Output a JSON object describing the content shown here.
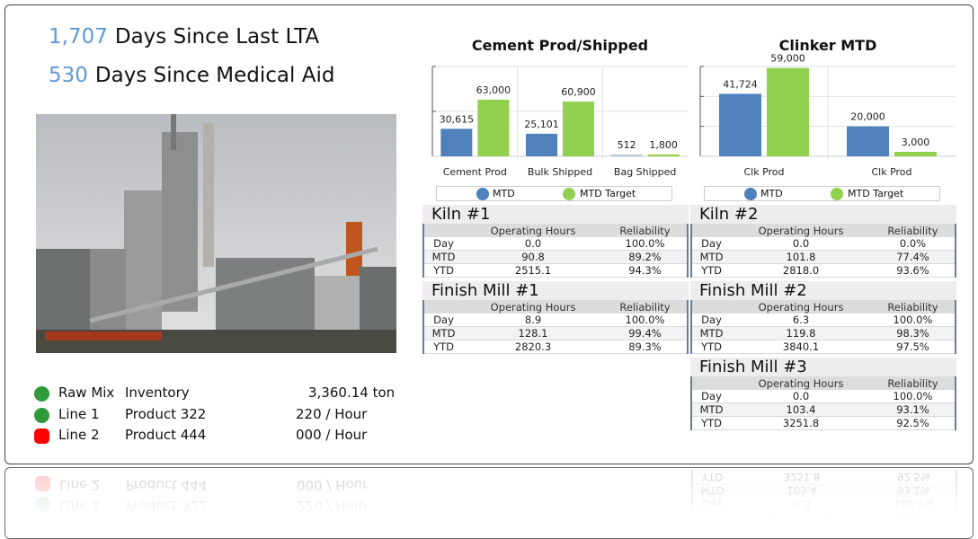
{
  "counters": [
    {
      "value": "1,707",
      "label": "Days Since Last LTA"
    },
    {
      "value": "530",
      "label": "Days Since Medical Aid"
    }
  ],
  "status": [
    {
      "name": "Raw Mix",
      "item": "Inventory",
      "value": "3,360.14 ton",
      "color": "#2e9a3a",
      "state": "running"
    },
    {
      "name": "Line 1",
      "item": "Product 322",
      "value": "220 / Hour",
      "color": "#2e9a3a",
      "state": "running"
    },
    {
      "name": "Line 2",
      "item": "Product 444",
      "value": "000 / Hour",
      "color": "#ff0000",
      "state": "stopped"
    }
  ],
  "chart_data": [
    {
      "type": "bar",
      "title": "Cement Prod/Shipped",
      "categories": [
        "Cement Prod",
        "Bulk Shipped",
        "Bag Shipped"
      ],
      "series": [
        {
          "name": "MTD",
          "color": "#4f81bd",
          "values": [
            30615,
            25101,
            512
          ]
        },
        {
          "name": "MTD Target",
          "color": "#92d050",
          "values": [
            63000,
            60900,
            1800
          ]
        }
      ],
      "labels": [
        [
          "30,615",
          "25,101",
          "512"
        ],
        [
          "63,000",
          "60,900",
          "1,800"
        ]
      ],
      "ylim": [
        0,
        100000
      ],
      "grid": true,
      "legend": "bottom"
    },
    {
      "type": "bar",
      "title": "Clinker MTD",
      "categories": [
        "Clk Prod",
        "Clk Prod"
      ],
      "series": [
        {
          "name": "MTD",
          "color": "#4f81bd",
          "values": [
            41724,
            20000
          ]
        },
        {
          "name": "MTD Target",
          "color": "#92d050",
          "values": [
            59000,
            3000
          ]
        }
      ],
      "labels": [
        [
          "41,724",
          "20,000"
        ],
        [
          "59,000",
          "3,000"
        ]
      ],
      "ylim": [
        0,
        60000
      ],
      "grid": true,
      "legend": "bottom"
    }
  ],
  "tables": [
    {
      "title": "Kiln #1",
      "headers": [
        "",
        "Operating Hours",
        "Reliability"
      ],
      "rows": [
        [
          "Day",
          "0.0",
          "100.0%"
        ],
        [
          "MTD",
          "90.8",
          "89.2%"
        ],
        [
          "YTD",
          "2515.1",
          "94.3%"
        ]
      ]
    },
    {
      "title": "Kiln #2",
      "headers": [
        "",
        "Operating Hours",
        "Reliability"
      ],
      "rows": [
        [
          "Day",
          "0.0",
          "0.0%"
        ],
        [
          "MTD",
          "101.8",
          "77.4%"
        ],
        [
          "YTD",
          "2818.0",
          "93.6%"
        ]
      ]
    },
    {
      "title": "Finish Mill #1",
      "headers": [
        "",
        "Operating Hours",
        "Reliability"
      ],
      "rows": [
        [
          "Day",
          "8.9",
          "100.0%"
        ],
        [
          "MTD",
          "128.1",
          "99.4%"
        ],
        [
          "YTD",
          "2820.3",
          "89.3%"
        ]
      ]
    },
    {
      "title": "Finish Mill #2",
      "headers": [
        "",
        "Operating Hours",
        "Reliability"
      ],
      "rows": [
        [
          "Day",
          "6.3",
          "100.0%"
        ],
        [
          "MTD",
          "119.8",
          "98.3%"
        ],
        [
          "YTD",
          "3840.1",
          "97.5%"
        ]
      ]
    },
    {
      "title": "Finish Mill #3",
      "headers": [
        "",
        "Operating Hours",
        "Reliability"
      ],
      "rows": [
        [
          "Day",
          "0.0",
          "100.0%"
        ],
        [
          "MTD",
          "103.4",
          "93.1%"
        ],
        [
          "YTD",
          "3251.8",
          "92.5%"
        ]
      ]
    }
  ]
}
